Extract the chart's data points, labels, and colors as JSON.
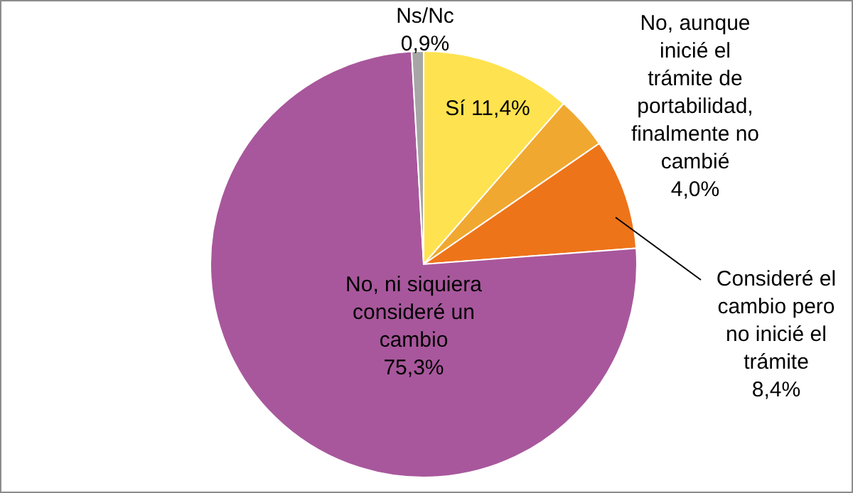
{
  "chart_data": {
    "type": "pie",
    "categories": [
      "Sí",
      "No, aunque inicié el trámite de portabilidad, finalmente no cambié",
      "Consideré el cambio pero no inicié el trámite",
      "No, ni siquiera consideré un cambio",
      "Ns/Nc"
    ],
    "values": [
      11.4,
      4.0,
      8.4,
      75.3,
      0.9
    ],
    "value_labels": [
      "11,4%",
      "4,0%",
      "8,4%",
      "75,3%",
      "0,9%"
    ],
    "colors": [
      "#ffe24f",
      "#f0a830",
      "#ee7419",
      "#a8579c",
      "#a6a6a6"
    ],
    "legend": false
  }
}
